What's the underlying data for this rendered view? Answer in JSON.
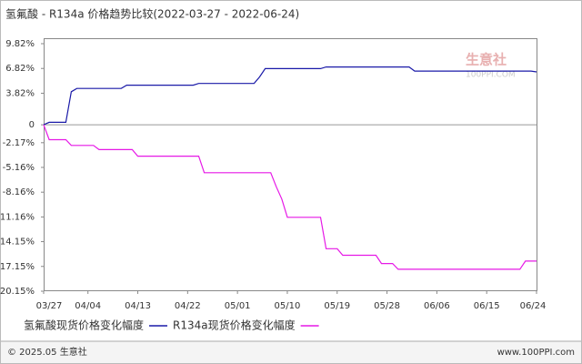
{
  "chart_data": {
    "type": "line",
    "title": "氢氟酸 - R134a 价格趋势比较(2022-03-27 - 2022-06-24)",
    "categories": [
      "03/27",
      null,
      null,
      null,
      null,
      null,
      null,
      null,
      "04/04",
      null,
      null,
      null,
      null,
      null,
      null,
      null,
      null,
      "04/13",
      null,
      null,
      null,
      null,
      null,
      null,
      null,
      null,
      "04/22",
      null,
      null,
      null,
      null,
      null,
      null,
      null,
      null,
      "05/01",
      null,
      null,
      null,
      null,
      null,
      null,
      null,
      null,
      "05/10",
      null,
      null,
      null,
      null,
      null,
      null,
      null,
      null,
      "05/19",
      null,
      null,
      null,
      null,
      null,
      null,
      null,
      null,
      "05/28",
      null,
      null,
      null,
      null,
      null,
      null,
      null,
      null,
      "06/06",
      null,
      null,
      null,
      null,
      null,
      null,
      null,
      null,
      "06/15",
      null,
      null,
      null,
      null,
      null,
      null,
      null,
      null,
      "06/24"
    ],
    "series": [
      {
        "name": "氢氟酸现货价格变化幅度",
        "color": "#1a1aa8",
        "values": [
          0,
          0.3,
          0.3,
          0.3,
          0.3,
          4.0,
          4.4,
          4.4,
          4.4,
          4.4,
          4.4,
          4.4,
          4.4,
          4.4,
          4.4,
          4.8,
          4.8,
          4.8,
          4.8,
          4.8,
          4.8,
          4.8,
          4.8,
          4.8,
          4.8,
          4.8,
          4.8,
          4.8,
          5.0,
          5.0,
          5.0,
          5.0,
          5.0,
          5.0,
          5.0,
          5.0,
          5.0,
          5.0,
          5.0,
          5.8,
          6.8,
          6.8,
          6.8,
          6.8,
          6.8,
          6.8,
          6.8,
          6.8,
          6.8,
          6.8,
          6.8,
          7.0,
          7.0,
          7.0,
          7.0,
          7.0,
          7.0,
          7.0,
          7.0,
          7.0,
          7.0,
          7.0,
          7.0,
          7.0,
          7.0,
          7.0,
          7.0,
          6.5,
          6.5,
          6.5,
          6.5,
          6.5,
          6.5,
          6.5,
          6.5,
          6.5,
          6.5,
          6.5,
          6.5,
          6.5,
          6.5,
          6.5,
          6.5,
          6.5,
          6.5,
          6.5,
          6.5,
          6.5,
          6.5,
          6.4
        ]
      },
      {
        "name": "R134a现货价格变化幅度",
        "color": "#e619e6",
        "values": [
          0,
          -1.8,
          -1.8,
          -1.8,
          -1.8,
          -2.5,
          -2.5,
          -2.5,
          -2.5,
          -2.5,
          -3.0,
          -3.0,
          -3.0,
          -3.0,
          -3.0,
          -3.0,
          -3.0,
          -3.8,
          -3.8,
          -3.8,
          -3.8,
          -3.8,
          -3.8,
          -3.8,
          -3.8,
          -3.8,
          -3.8,
          -3.8,
          -3.8,
          -5.8,
          -5.8,
          -5.8,
          -5.8,
          -5.8,
          -5.8,
          -5.8,
          -5.8,
          -5.8,
          -5.8,
          -5.8,
          -5.8,
          -5.8,
          -7.5,
          -9.0,
          -11.2,
          -11.2,
          -11.2,
          -11.2,
          -11.2,
          -11.2,
          -11.2,
          -15.0,
          -15.0,
          -15.0,
          -15.8,
          -15.8,
          -15.8,
          -15.8,
          -15.8,
          -15.8,
          -15.8,
          -16.8,
          -16.8,
          -16.8,
          -17.5,
          -17.5,
          -17.5,
          -17.5,
          -17.5,
          -17.5,
          -17.5,
          -17.5,
          -17.5,
          -17.5,
          -17.5,
          -17.5,
          -17.5,
          -17.5,
          -17.5,
          -17.5,
          -17.5,
          -17.5,
          -17.5,
          -17.5,
          -17.5,
          -17.5,
          -17.5,
          -16.5,
          -16.5,
          -16.5
        ]
      }
    ],
    "ylim": [
      -20.15,
      9.82
    ],
    "yticks": [
      {
        "value": 9.82,
        "label": "9.82%"
      },
      {
        "value": 6.82,
        "label": "6.82%"
      },
      {
        "value": 3.82,
        "label": "3.82%"
      },
      0,
      {
        "value": -2.17,
        "label": "-2.17%"
      },
      {
        "value": -5.16,
        "label": "-5.16%"
      },
      {
        "value": -8.16,
        "label": "-8.16%"
      },
      {
        "value": -11.16,
        "label": "-11.16%"
      },
      {
        "value": -14.15,
        "label": "-14.15%"
      },
      {
        "value": -17.15,
        "label": "-17.15%"
      },
      {
        "value": -20.15,
        "label": "-20.15%"
      }
    ],
    "grid": false
  },
  "watermark": {
    "name": "生意社",
    "site": "100PPI.COM"
  },
  "footer": {
    "left": "© 2025.05 生意社",
    "right": "www.100PPI.com"
  }
}
